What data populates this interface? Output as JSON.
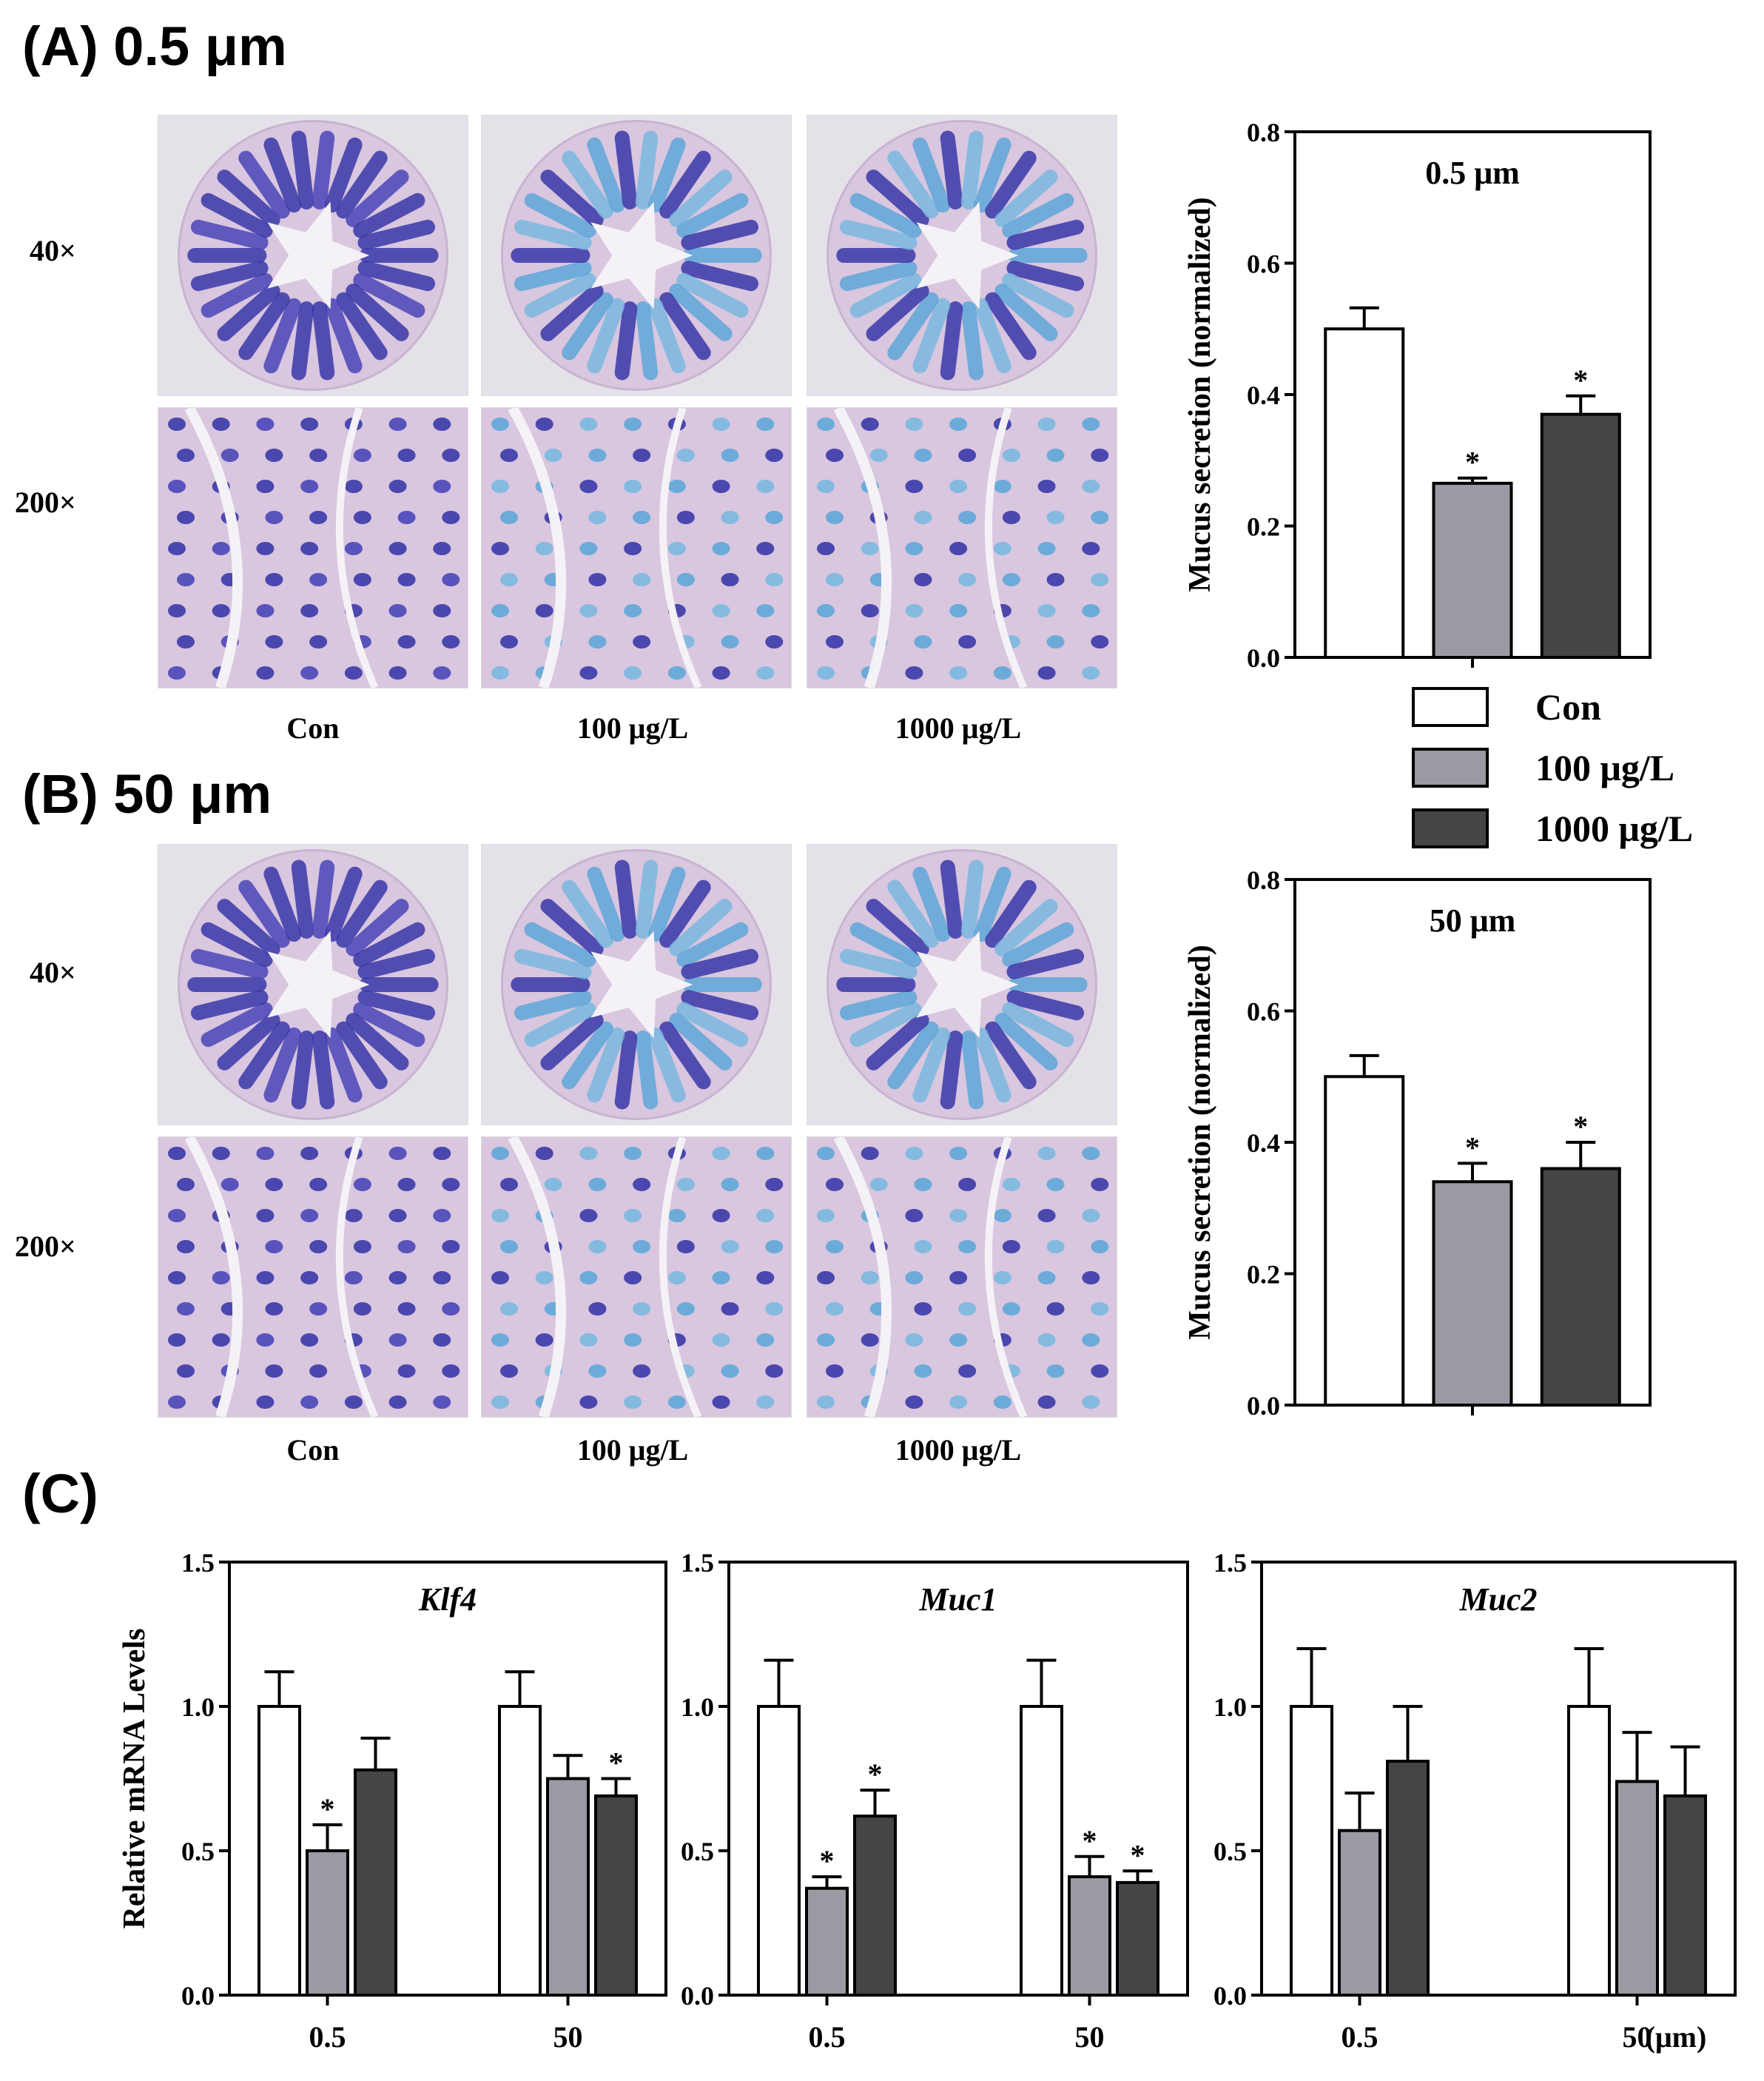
{
  "panels": {
    "a_label": "(A) 0.5 μm",
    "b_label": "(B) 50 μm",
    "c_label": "(C)"
  },
  "micrographs": {
    "row_labels": [
      "40×",
      "200×"
    ],
    "col_labels": [
      "Con",
      "100 μg/L",
      "1000 μg/L"
    ]
  },
  "colors": {
    "con": "#ffffff",
    "low": "#9a9aa2",
    "high": "#454547",
    "stain_dark": "#3a38a8",
    "stain_light": "#5fa7d8",
    "tissue": "#d9c6df",
    "background": "#e4e2e8"
  },
  "legend": {
    "items": [
      "Con",
      "100 μg/L",
      "1000 μg/L"
    ]
  },
  "chart_data": [
    {
      "type": "bar",
      "title": "0.5 μm",
      "ylabel": "Mucus secretion (normalized)",
      "ylim": [
        0,
        0.8
      ],
      "yticks": [
        "0.0",
        "0.2",
        "0.4",
        "0.6",
        "0.8"
      ],
      "categories": [
        "Con",
        "100 μg/L",
        "1000 μg/L"
      ],
      "values": [
        0.5,
        0.265,
        0.37
      ],
      "errors": [
        0.032,
        0.008,
        0.028
      ],
      "significance": [
        "",
        "*",
        "*"
      ]
    },
    {
      "type": "bar",
      "title": "50 μm",
      "ylabel": "Mucus secretion (normalized)",
      "ylim": [
        0,
        0.8
      ],
      "yticks": [
        "0.0",
        "0.2",
        "0.4",
        "0.6",
        "0.8"
      ],
      "categories": [
        "Con",
        "100 μg/L",
        "1000 μg/L"
      ],
      "values": [
        0.5,
        0.34,
        0.36
      ],
      "errors": [
        0.032,
        0.028,
        0.04
      ],
      "significance": [
        "",
        "*",
        "*"
      ]
    },
    {
      "type": "bar",
      "title": "Klf4",
      "ylabel": "Relative mRNA Levels",
      "ylim": [
        0,
        1.5
      ],
      "yticks": [
        "0.0",
        "0.5",
        "1.0",
        "1.5"
      ],
      "categories": [
        "0.5",
        "50"
      ],
      "series": [
        {
          "name": "Con",
          "values": [
            1.0,
            1.0
          ],
          "errors": [
            0.12,
            0.12
          ],
          "significance": [
            "",
            ""
          ]
        },
        {
          "name": "100 μg/L",
          "values": [
            0.5,
            0.75
          ],
          "errors": [
            0.09,
            0.08
          ],
          "significance": [
            "*",
            ""
          ]
        },
        {
          "name": "1000 μg/L",
          "values": [
            0.78,
            0.69
          ],
          "errors": [
            0.11,
            0.06
          ],
          "significance": [
            "",
            "*"
          ]
        }
      ]
    },
    {
      "type": "bar",
      "title": "Muc1",
      "ylabel": "",
      "ylim": [
        0,
        1.5
      ],
      "yticks": [
        "0.0",
        "0.5",
        "1.0",
        "1.5"
      ],
      "categories": [
        "0.5",
        "50"
      ],
      "series": [
        {
          "name": "Con",
          "values": [
            1.0,
            1.0
          ],
          "errors": [
            0.16,
            0.16
          ],
          "significance": [
            "",
            ""
          ]
        },
        {
          "name": "100 μg/L",
          "values": [
            0.37,
            0.41
          ],
          "errors": [
            0.04,
            0.07
          ],
          "significance": [
            "*",
            "*"
          ]
        },
        {
          "name": "1000 μg/L",
          "values": [
            0.62,
            0.39
          ],
          "errors": [
            0.09,
            0.04
          ],
          "significance": [
            "*",
            "*"
          ]
        }
      ]
    },
    {
      "type": "bar",
      "title": "Muc2",
      "ylabel": "",
      "ylim": [
        0,
        1.5
      ],
      "yticks": [
        "0.0",
        "0.5",
        "1.0",
        "1.5"
      ],
      "categories": [
        "0.5",
        "50"
      ],
      "xunit": "(μm)",
      "series": [
        {
          "name": "Con",
          "values": [
            1.0,
            1.0
          ],
          "errors": [
            0.2,
            0.2
          ],
          "significance": [
            "",
            ""
          ]
        },
        {
          "name": "100 μg/L",
          "values": [
            0.57,
            0.74
          ],
          "errors": [
            0.13,
            0.17
          ],
          "significance": [
            "",
            ""
          ]
        },
        {
          "name": "1000 μg/L",
          "values": [
            0.81,
            0.69
          ],
          "errors": [
            0.19,
            0.17
          ],
          "significance": [
            "",
            ""
          ]
        }
      ]
    }
  ]
}
